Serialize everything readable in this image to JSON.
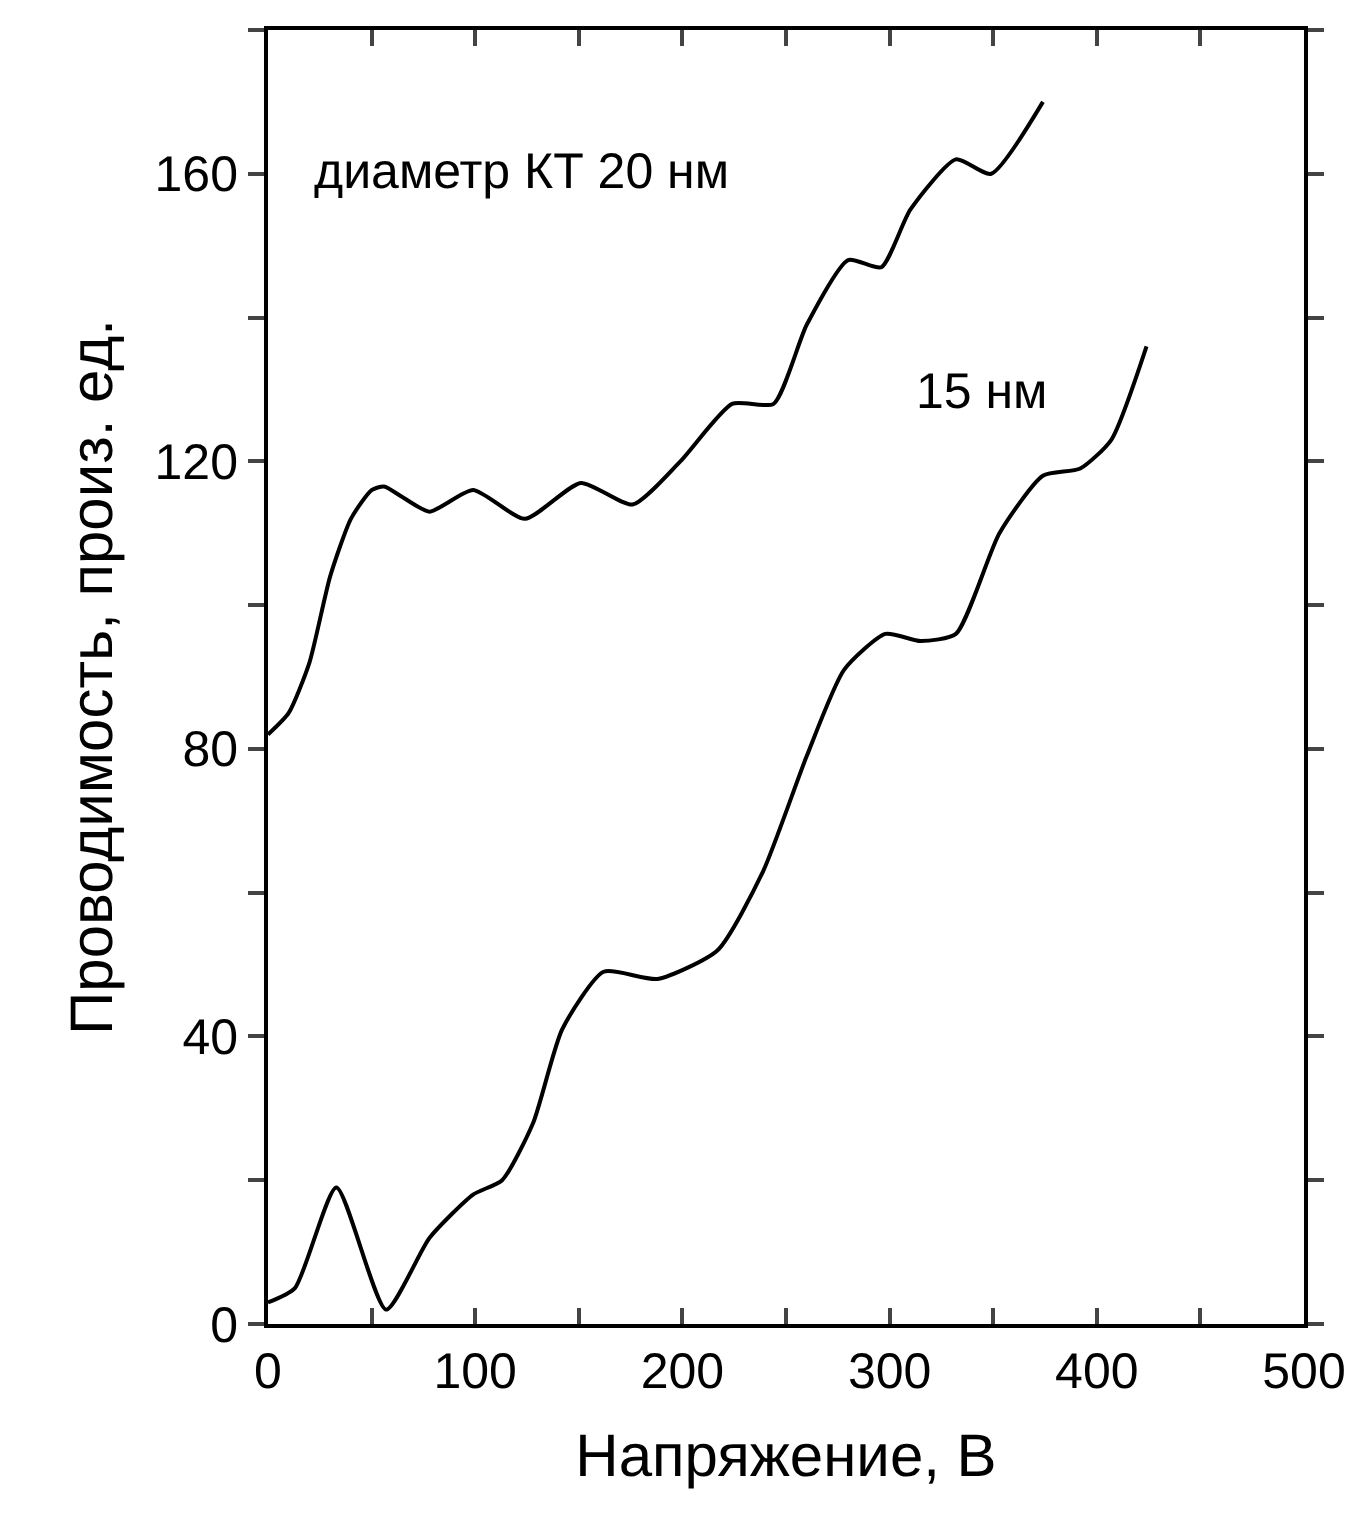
{
  "chart_data": {
    "type": "line",
    "xlabel": "Напряжение, В",
    "ylabel": "Проводимость, произ. ед.",
    "xlim": [
      0,
      500
    ],
    "ylim": [
      0,
      180
    ],
    "xticks": [
      0,
      {
        "value": 50,
        "label": null
      },
      100,
      {
        "value": 150,
        "label": null
      },
      200,
      {
        "value": 250,
        "label": null
      },
      300,
      {
        "value": 350,
        "label": null
      },
      400,
      {
        "value": 450,
        "label": null
      },
      500
    ],
    "yticks": [
      0,
      {
        "value": 20,
        "label": null
      },
      40,
      {
        "value": 60,
        "label": null
      },
      80,
      {
        "value": 100,
        "label": null
      },
      120,
      {
        "value": 140,
        "label": null
      },
      160,
      {
        "value": 180,
        "label": null
      }
    ],
    "grid": false,
    "legend": false,
    "marker": "none",
    "line_style": "solid",
    "series": [
      {
        "name": "диаметр КТ 20 нм",
        "color": "#000000",
        "x": [
          0,
          10,
          20,
          30,
          40,
          50,
          56,
          65,
          78,
          99,
          124,
          151,
          176,
          199,
          224,
          244,
          260,
          280,
          296,
          310,
          332,
          349,
          374
        ],
        "values": [
          82,
          85,
          92,
          104,
          112,
          116,
          116.5,
          115,
          113,
          116,
          112,
          117,
          114,
          120,
          128,
          128,
          139,
          148,
          147,
          155,
          162,
          160,
          170
        ]
      },
      {
        "name": "15 нм",
        "color": "#000000",
        "x": [
          0,
          13,
          33,
          57,
          78,
          99,
          113,
          128,
          142,
          162,
          188,
          217,
          239,
          260,
          278,
          298,
          315,
          332,
          353,
          374,
          392,
          407,
          424
        ],
        "values": [
          3,
          5,
          19,
          2,
          12,
          18,
          20,
          28,
          41,
          49,
          48,
          52,
          63,
          79,
          91,
          96,
          95,
          96,
          110,
          118,
          119,
          123,
          136
        ]
      }
    ]
  }
}
